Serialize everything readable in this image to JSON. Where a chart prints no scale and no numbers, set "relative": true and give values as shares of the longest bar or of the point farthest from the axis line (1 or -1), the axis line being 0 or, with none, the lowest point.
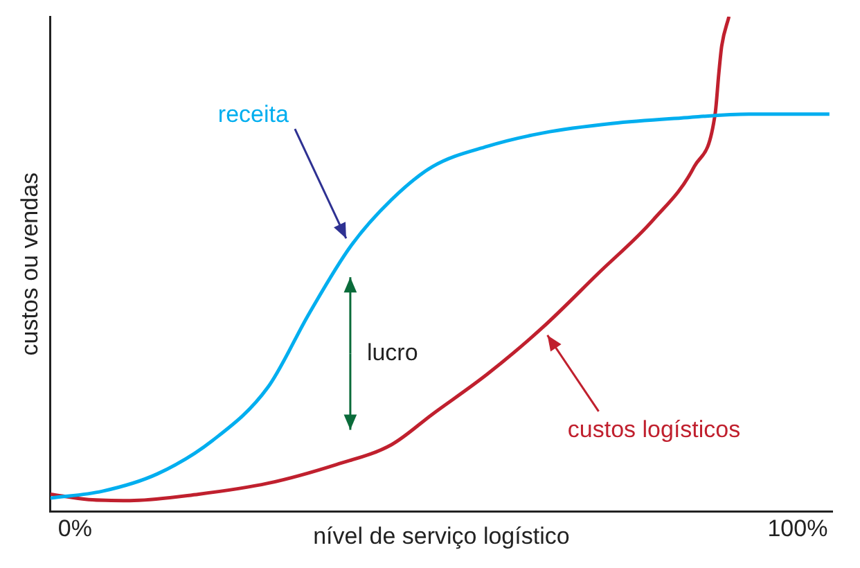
{
  "chart_data": {
    "type": "line",
    "relative": true,
    "xlabel": "nível de serviço logístico",
    "ylabel": "custos ou vendas",
    "xlim": [
      -3.4,
      104.8
    ],
    "xticks": [
      {
        "value": 0,
        "label": "0%"
      },
      {
        "value": 100,
        "label": "100%"
      }
    ],
    "grid": false,
    "legend": false,
    "marker": "none",
    "line_style": "solid",
    "annotations": [
      "lucro"
    ],
    "series": [
      {
        "name": "receita",
        "color": "#00aeef",
        "x": [
          -3.4,
          3.8,
          11.4,
          19.0,
          26.7,
          32.4,
          38.1,
          43.8,
          49.5,
          57.1,
          64.8,
          74.3,
          83.8,
          93.3,
          104.4
        ],
        "values": [
          0.027,
          0.041,
          0.076,
          0.143,
          0.251,
          0.4,
          0.535,
          0.63,
          0.697,
          0.738,
          0.765,
          0.784,
          0.795,
          0.803,
          0.803
        ]
      },
      {
        "name": "custos logísticos",
        "color": "#c0202e",
        "x": [
          -3.4,
          1.9,
          7.6,
          17.1,
          26.7,
          36.2,
          43.8,
          49.5,
          57.1,
          64.8,
          72.4,
          80.0,
          85.7,
          88.6,
          89.1,
          89.5,
          90.5
        ],
        "values": [
          0.035,
          0.024,
          0.022,
          0.035,
          0.057,
          0.095,
          0.135,
          0.197,
          0.278,
          0.373,
          0.481,
          0.589,
          0.697,
          0.805,
          0.886,
          0.941,
          1
        ]
      }
    ]
  }
}
